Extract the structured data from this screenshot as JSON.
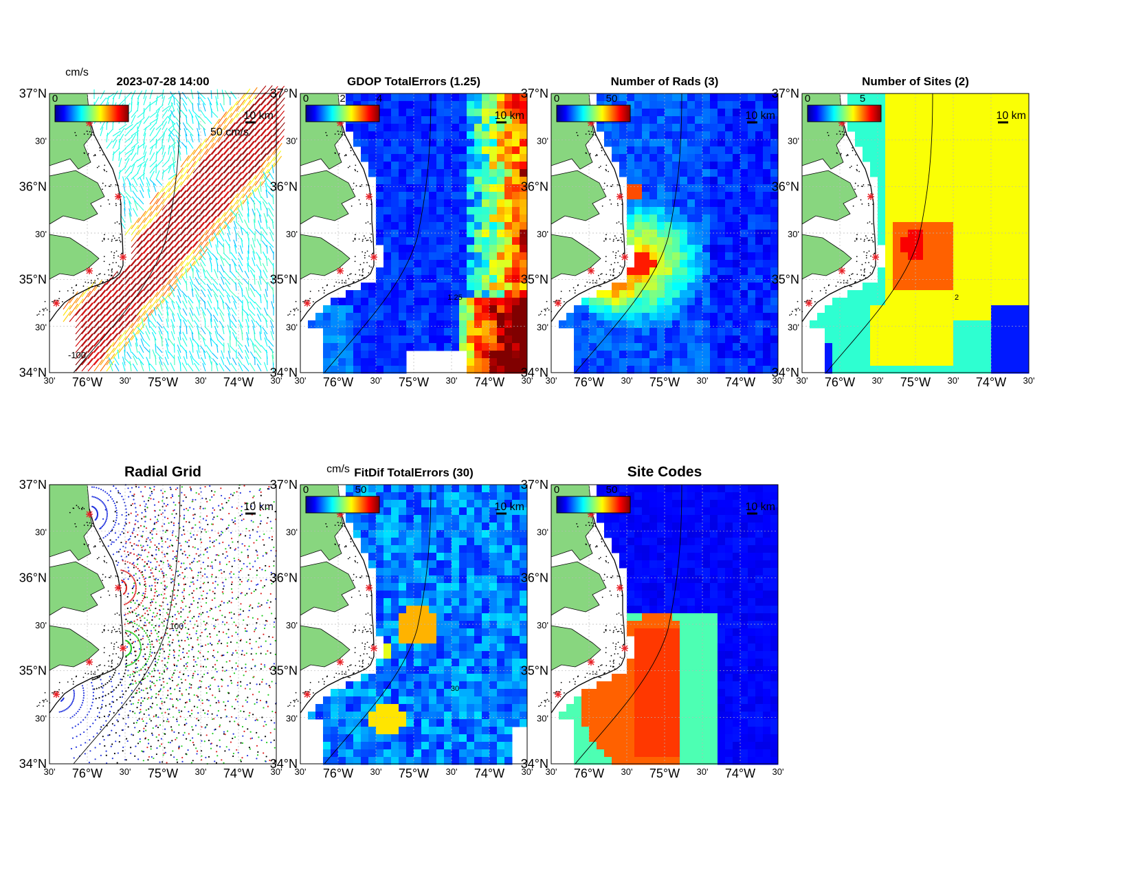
{
  "figure": {
    "timestamp": "2023-07-28 14:00",
    "speed_unit": "cm/s",
    "vector_scale_label": "50 cm/s",
    "scale_bar_label": "10 km",
    "colors": {
      "land": "#88d67f",
      "site_marker": "#e8242a",
      "grid_line": "#b8b8b8",
      "contour": "#000000"
    },
    "colormap": "jet"
  },
  "axes": {
    "lat_ticks": [
      "37°N",
      "30'",
      "36°N",
      "30'",
      "35°N",
      "30'",
      "34°N"
    ],
    "lon_ticks": [
      "30'",
      "76°W",
      "30'",
      "75°W",
      "30'",
      "74°W",
      "30'"
    ]
  },
  "panels": {
    "vectors": {
      "title": "2023-07-28 14:00",
      "unit": "cm/s",
      "cbar_ticks": [
        "0"
      ],
      "scale_label": "50 cm/s",
      "km_label": "10 km",
      "contour_label": "-100"
    },
    "gdop": {
      "title": "GDOP TotalErrors (1.25)",
      "cbar_ticks": [
        "0",
        "2",
        "4"
      ],
      "km_label": "10 km",
      "contour_label": "1.25"
    },
    "rads": {
      "title": "Number of Rads (3)",
      "cbar_ticks": [
        "0",
        "50"
      ],
      "km_label": "10 km"
    },
    "sites": {
      "title": "Number of Sites (2)",
      "cbar_ticks": [
        "0",
        "5"
      ],
      "km_label": "10 km",
      "contour_label": "2"
    },
    "radial": {
      "title": "Radial Grid",
      "km_label": "10 km",
      "contour_label": "100",
      "dot_colors": [
        "#2233dd",
        "#dd2222",
        "#22cc22",
        "#000000"
      ]
    },
    "fitdif": {
      "title": "FitDif TotalErrors (30)",
      "unit": "cm/s",
      "cbar_ticks": [
        "0",
        "50"
      ],
      "km_label": "10 km",
      "contour_label": "30"
    },
    "codes": {
      "title": "Site Codes",
      "cbar_ticks": [
        "0",
        "50"
      ],
      "km_label": "10 km"
    }
  }
}
